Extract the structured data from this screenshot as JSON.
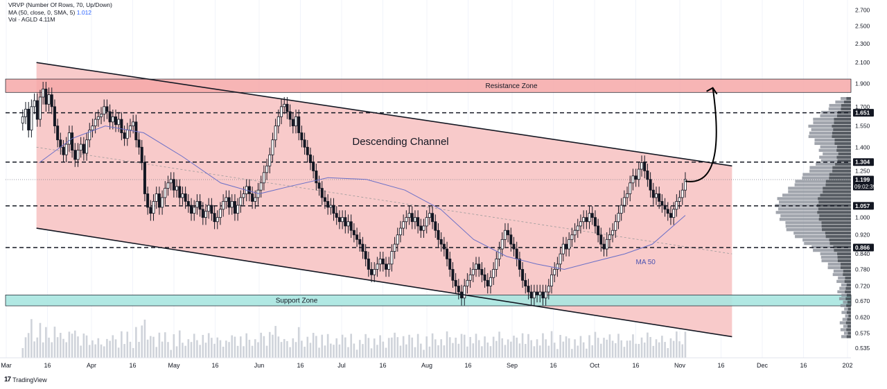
{
  "legend": {
    "vrvp": "VRVP (Number Of Rows, 70, Up/Down)",
    "ma_label": "MA (50, close, 0, SMA, 5)",
    "ma_value": "1.012",
    "vol_label": "Vol · AGLD",
    "vol_value": "4.11M"
  },
  "branding": {
    "logo": "17",
    "name": "TradingView"
  },
  "colors": {
    "up": "#089981",
    "down": "#131722",
    "channel_fill": "#f8c7c7",
    "resistance_fill": "#f6a8a8",
    "support_fill": "#a8e6e0",
    "ma_line": "#6a6fc7",
    "volume": "#cfd3da",
    "profile_up": "#8a8f98",
    "profile_down": "#3a3f48"
  },
  "chart_data": {
    "type": "candlestick",
    "title": "",
    "xlabel": "",
    "ylabel": "",
    "scale": "log",
    "ylim": [
      0.51,
      3.0
    ],
    "y_ticks": [
      "2.700",
      "2.500",
      "2.300",
      "2.100",
      "1.900",
      "1.700",
      "1.550",
      "1.400",
      "1.250",
      "1.150",
      "1.000",
      "0.920",
      "0.840",
      "0.780",
      "0.720",
      "0.670",
      "0.620",
      "0.575",
      "0.535"
    ],
    "x_ticks": [
      "Mar",
      "16",
      "Apr",
      "16",
      "May",
      "16",
      "Jun",
      "16",
      "Jul",
      "16",
      "Aug",
      "16",
      "Sep",
      "16",
      "Oct",
      "16",
      "Nov",
      "16",
      "Dec",
      "16",
      "202"
    ],
    "price_labels": [
      {
        "text": "1.651",
        "value": 1.651
      },
      {
        "text": "1.304",
        "value": 1.304
      },
      {
        "text": "1.199",
        "value": 1.199,
        "sub": "09:02:39"
      },
      {
        "text": "1.057",
        "value": 1.057
      },
      {
        "text": "0.866",
        "value": 0.866
      }
    ],
    "levels": [
      1.651,
      1.304,
      1.057,
      0.866
    ],
    "zones": [
      {
        "name": "Resistance Zone",
        "from": 1.82,
        "to": 1.94
      },
      {
        "name": "Support Zone",
        "from": 0.655,
        "to": 0.69
      }
    ],
    "channel": {
      "label": "Descending Channel",
      "upper": [
        {
          "x": "2024-03-12",
          "y": 2.1
        },
        {
          "x": "2024-11-20",
          "y": 1.28
        }
      ],
      "lower": [
        {
          "x": "2024-03-12",
          "y": 0.95
        },
        {
          "x": "2024-11-20",
          "y": 0.565
        }
      ],
      "mid": [
        {
          "x": "2024-03-12",
          "y": 1.4
        },
        {
          "x": "2024-11-20",
          "y": 0.84
        }
      ]
    },
    "projection": {
      "from": "2024-11-03",
      "to": "2024-11-13",
      "target": 1.86
    },
    "ma_annotation": "MA 50",
    "close": [
      1.62,
      1.68,
      1.52,
      1.7,
      1.75,
      1.6,
      1.78,
      1.85,
      1.72,
      1.8,
      1.7,
      1.55,
      1.45,
      1.4,
      1.35,
      1.42,
      1.5,
      1.38,
      1.32,
      1.38,
      1.42,
      1.36,
      1.45,
      1.52,
      1.55,
      1.6,
      1.62,
      1.64,
      1.7,
      1.66,
      1.58,
      1.62,
      1.56,
      1.6,
      1.5,
      1.46,
      1.52,
      1.55,
      1.58,
      1.45,
      1.4,
      1.3,
      1.12,
      1.05,
      1.02,
      1.08,
      1.12,
      1.05,
      1.1,
      1.15,
      1.18,
      1.2,
      1.14,
      1.16,
      1.1,
      1.12,
      1.08,
      1.06,
      1.02,
      1.05,
      1.08,
      1.04,
      1.0,
      1.03,
      1.06,
      1.02,
      0.98,
      1.0,
      1.04,
      1.08,
      1.1,
      1.05,
      1.08,
      1.02,
      1.06,
      1.1,
      1.12,
      1.16,
      1.12,
      1.08,
      1.1,
      1.14,
      1.18,
      1.24,
      1.28,
      1.35,
      1.45,
      1.55,
      1.62,
      1.7,
      1.72,
      1.66,
      1.6,
      1.55,
      1.62,
      1.5,
      1.45,
      1.4,
      1.35,
      1.3,
      1.25,
      1.18,
      1.15,
      1.1,
      1.08,
      1.05,
      1.06,
      1.02,
      1.0,
      0.98,
      1.0,
      0.96,
      0.98,
      0.94,
      0.92,
      0.9,
      0.88,
      0.85,
      0.82,
      0.78,
      0.76,
      0.78,
      0.8,
      0.82,
      0.8,
      0.78,
      0.8,
      0.85,
      0.88,
      0.92,
      0.95,
      0.98,
      1.0,
      1.02,
      0.98,
      1.0,
      0.96,
      0.94,
      0.96,
      1.0,
      1.02,
      0.98,
      0.94,
      0.9,
      0.88,
      0.86,
      0.82,
      0.78,
      0.74,
      0.72,
      0.7,
      0.68,
      0.72,
      0.74,
      0.76,
      0.78,
      0.8,
      0.78,
      0.76,
      0.74,
      0.72,
      0.75,
      0.78,
      0.82,
      0.86,
      0.9,
      0.94,
      0.92,
      0.88,
      0.86,
      0.82,
      0.78,
      0.74,
      0.72,
      0.7,
      0.68,
      0.7,
      0.69,
      0.7,
      0.68,
      0.7,
      0.72,
      0.76,
      0.78,
      0.8,
      0.84,
      0.88,
      0.86,
      0.9,
      0.92,
      0.94,
      0.96,
      0.98,
      1.0,
      0.98,
      1.02,
      1.0,
      0.96,
      0.92,
      0.88,
      0.86,
      0.9,
      0.92,
      0.94,
      0.98,
      1.02,
      1.06,
      1.1,
      1.12,
      1.18,
      1.22,
      1.2,
      1.26,
      1.3,
      1.25,
      1.2,
      1.14,
      1.1,
      1.12,
      1.08,
      1.06,
      1.04,
      1.02,
      1.0,
      1.04,
      1.08,
      1.1,
      1.14,
      1.2
    ],
    "ma50": [
      {
        "x": "2024-03-13",
        "y": 1.3
      },
      {
        "x": "2024-03-25",
        "y": 1.46
      },
      {
        "x": "2024-04-06",
        "y": 1.55
      },
      {
        "x": "2024-04-20",
        "y": 1.5
      },
      {
        "x": "2024-05-04",
        "y": 1.34
      },
      {
        "x": "2024-05-18",
        "y": 1.18
      },
      {
        "x": "2024-06-01",
        "y": 1.12
      },
      {
        "x": "2024-06-12",
        "y": 1.16
      },
      {
        "x": "2024-06-26",
        "y": 1.21
      },
      {
        "x": "2024-07-10",
        "y": 1.2
      },
      {
        "x": "2024-07-24",
        "y": 1.14
      },
      {
        "x": "2024-08-06",
        "y": 1.04
      },
      {
        "x": "2024-08-18",
        "y": 0.9
      },
      {
        "x": "2024-08-30",
        "y": 0.83
      },
      {
        "x": "2024-09-10",
        "y": 0.8
      },
      {
        "x": "2024-09-20",
        "y": 0.78
      },
      {
        "x": "2024-10-01",
        "y": 0.81
      },
      {
        "x": "2024-10-12",
        "y": 0.84
      },
      {
        "x": "2024-10-22",
        "y": 0.88
      },
      {
        "x": "2024-11-03",
        "y": 1.01
      }
    ]
  }
}
